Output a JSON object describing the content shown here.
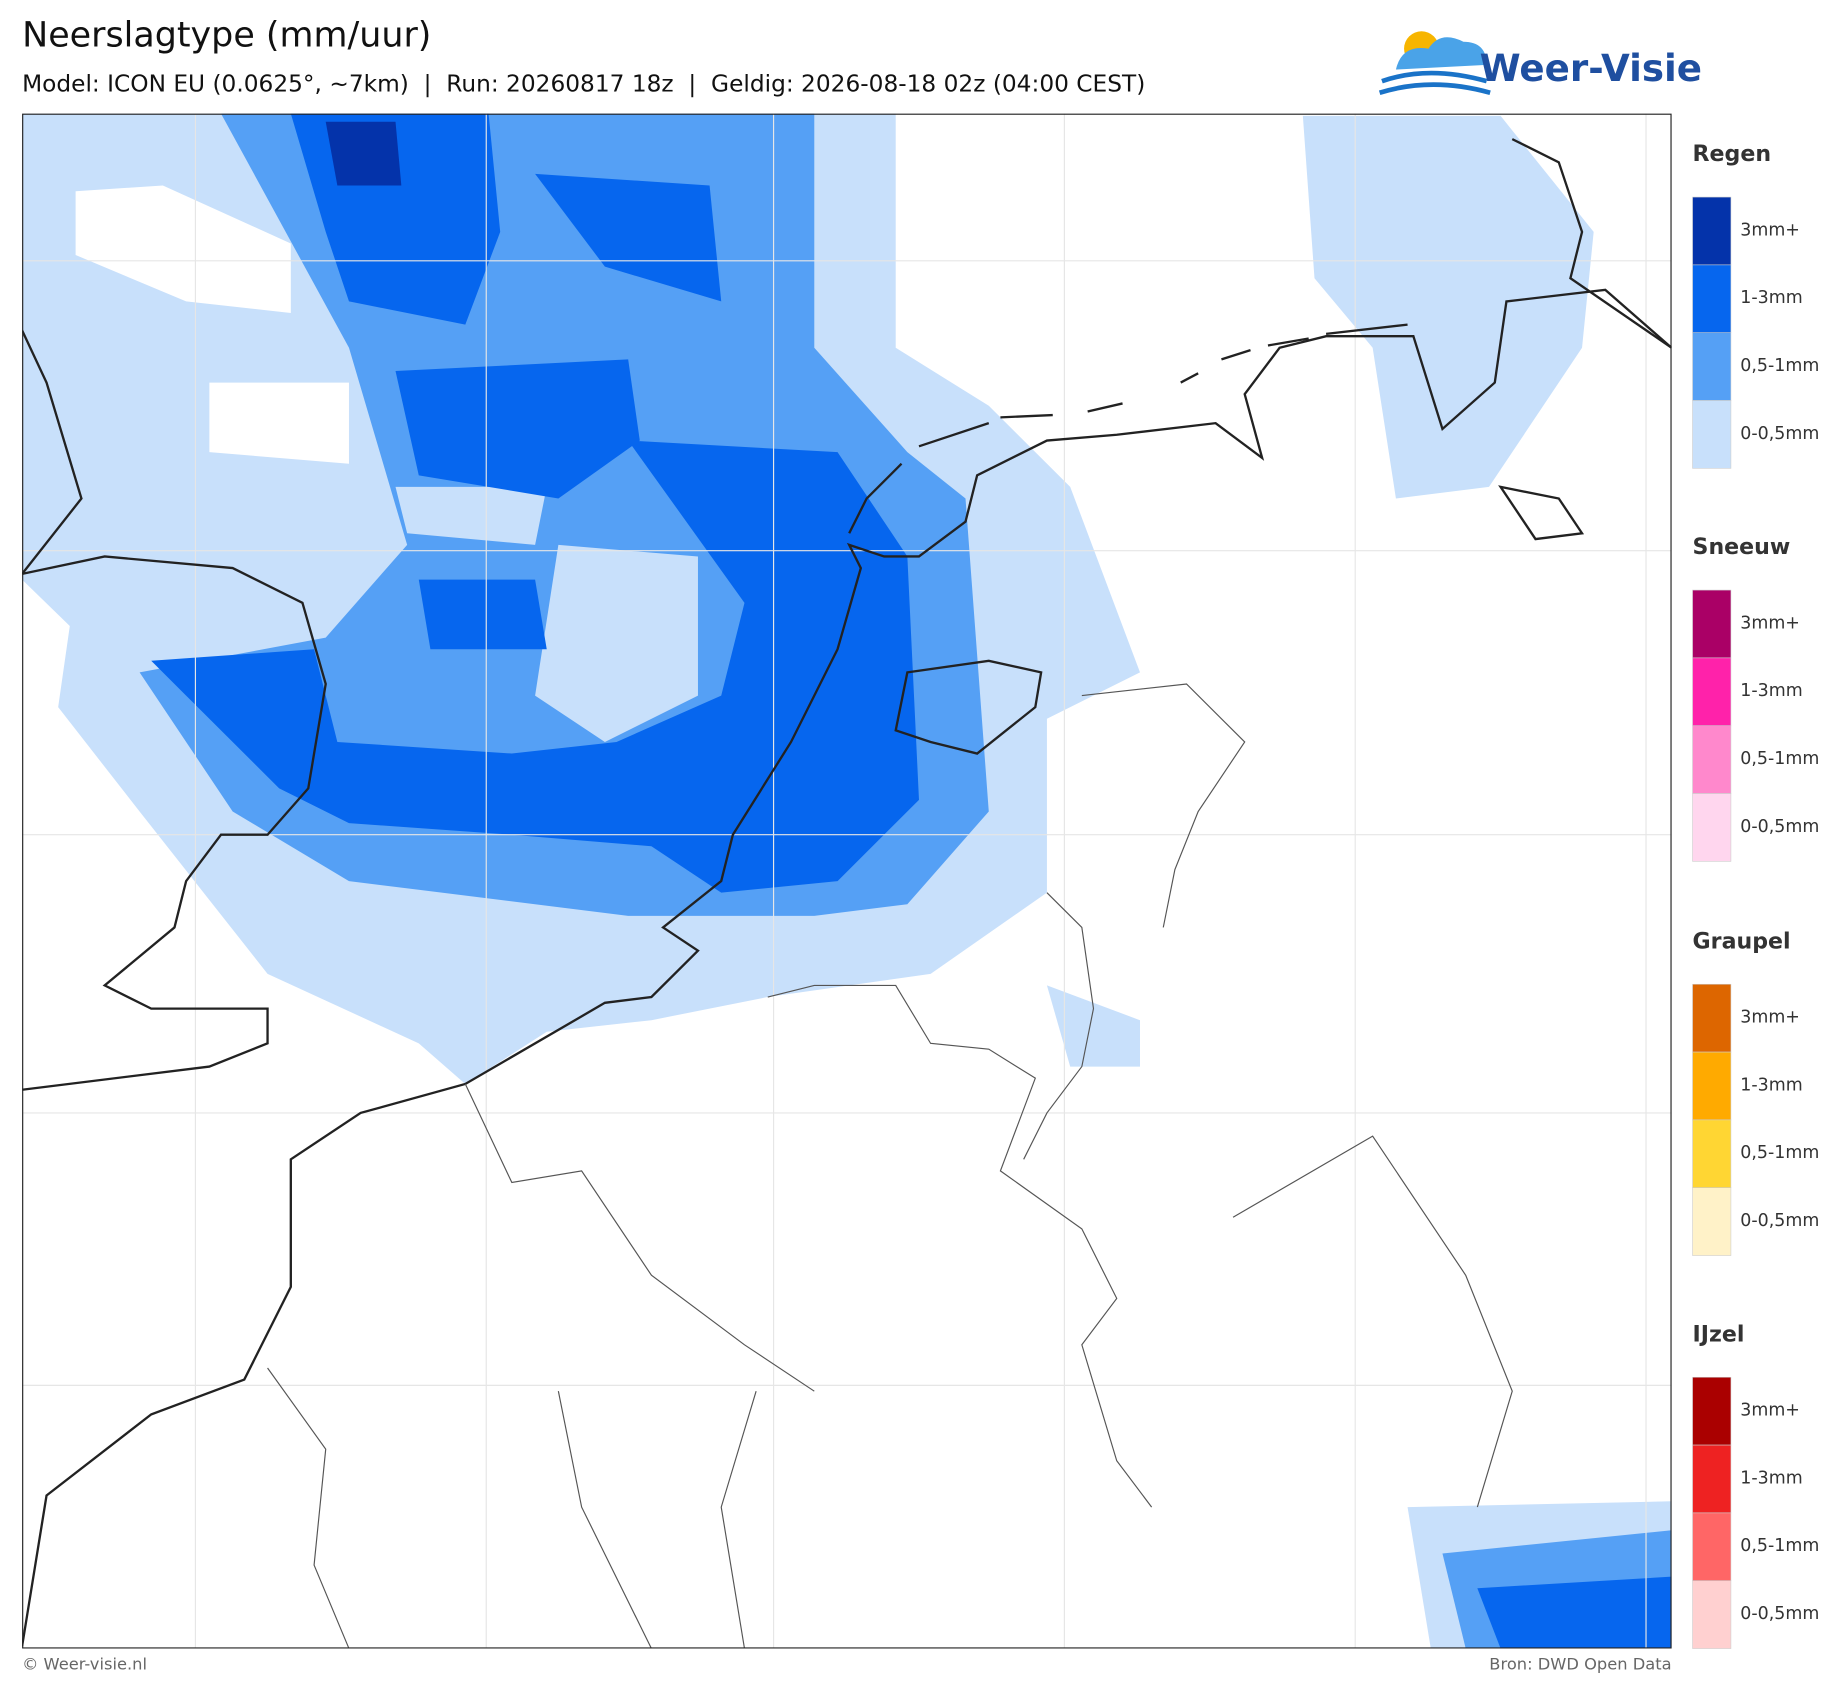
{
  "header": {
    "title": "Neerslagtype (mm/uur)",
    "subtitle": "Model: ICON EU (0.0625°, ~7km)  |  Run: 20260817 18z  |  Geldig: 2026-08-18 02z (04:00 CEST)"
  },
  "logo": {
    "text": "Weer-Visie"
  },
  "legend": [
    {
      "title": "Regen",
      "items": [
        {
          "label": "3mm+",
          "color": "#0433aa"
        },
        {
          "label": "1-3mm",
          "color": "#0666ee"
        },
        {
          "label": "0,5-1mm",
          "color": "#55a0f5"
        },
        {
          "label": "0-0,5mm",
          "color": "#c8e0fb"
        }
      ]
    },
    {
      "title": "Sneeuw",
      "items": [
        {
          "label": "3mm+",
          "color": "#aa0066"
        },
        {
          "label": "1-3mm",
          "color": "#ff22aa"
        },
        {
          "label": "0,5-1mm",
          "color": "#ff88cc"
        },
        {
          "label": "0-0,5mm",
          "color": "#ffd6ee"
        }
      ]
    },
    {
      "title": "Graupel",
      "items": [
        {
          "label": "3mm+",
          "color": "#dd6600"
        },
        {
          "label": "1-3mm",
          "color": "#ffaa00"
        },
        {
          "label": "0,5-1mm",
          "color": "#ffd633"
        },
        {
          "label": "0-0,5mm",
          "color": "#fff2c8"
        }
      ]
    },
    {
      "title": "IJzel",
      "items": [
        {
          "label": "3mm+",
          "color": "#aa0000"
        },
        {
          "label": "1-3mm",
          "color": "#ee2222"
        },
        {
          "label": "0,5-1mm",
          "color": "#ff6666"
        },
        {
          "label": "0-0,5mm",
          "color": "#ffd0d0"
        }
      ]
    }
  ],
  "footer": {
    "left": "© Weer-visie.nl",
    "right": "Bron: DWD Open Data"
  }
}
